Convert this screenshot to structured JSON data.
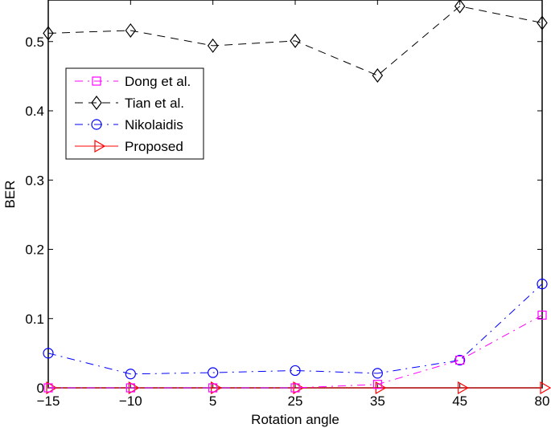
{
  "chart_data": {
    "type": "line",
    "title": "",
    "xlabel": "Rotation angle",
    "ylabel": "BER",
    "categories": [
      "-15",
      "-10",
      "5",
      "25",
      "35",
      "45",
      "80"
    ],
    "x_tick_labels": [
      "−15",
      "−10",
      "5",
      "25",
      "35",
      "45",
      "80"
    ],
    "y_ticks": [
      0,
      0.1,
      0.2,
      0.3,
      0.4,
      0.5
    ],
    "y_tick_labels": [
      "0",
      "0.1",
      "0.2",
      "0.3",
      "0.4",
      "0.5"
    ],
    "ylim": [
      0,
      0.56
    ],
    "grid": false,
    "legend_position": "upper left (inset)",
    "series": [
      {
        "name": "Dong et al.",
        "color": "#ff00ff",
        "dash": "dash-dot",
        "marker": "square",
        "values": [
          0,
          0,
          0,
          0,
          0.005,
          0.04,
          0.105
        ]
      },
      {
        "name": "Tian et al.",
        "color": "#000000",
        "dash": "dashed",
        "marker": "diamond",
        "values": [
          0.512,
          0.516,
          0.494,
          0.501,
          0.451,
          0.551,
          0.527
        ]
      },
      {
        "name": "Nikolaidis",
        "color": "#0000ff",
        "dash": "dash-dot",
        "marker": "circle",
        "values": [
          0.05,
          0.02,
          0.022,
          0.025,
          0.021,
          0.04,
          0.15
        ]
      },
      {
        "name": "Proposed",
        "color": "#ff0000",
        "dash": "solid",
        "marker": "triangle-right",
        "values": [
          0,
          0,
          0,
          0,
          0,
          0,
          0
        ]
      }
    ]
  }
}
